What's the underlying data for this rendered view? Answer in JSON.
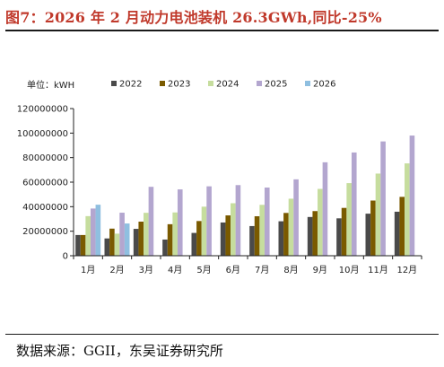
{
  "figure": {
    "title": "图7：2026 年 2 月动力电池装机 26.3GWh,同比-25%",
    "source": "数据来源：GGII，东吴证券研究所"
  },
  "chart_data": {
    "type": "bar",
    "unit_label": "单位：kWH",
    "categories": [
      "1月",
      "2月",
      "3月",
      "4月",
      "5月",
      "6月",
      "7月",
      "8月",
      "9月",
      "10月",
      "11月",
      "12月"
    ],
    "series": [
      {
        "name": "2022",
        "color": "#4a4a4a",
        "values": [
          16900000,
          14100000,
          21900000,
          13200000,
          18600000,
          27100000,
          24200000,
          28100000,
          31600000,
          30500000,
          34300000,
          35900000
        ]
      },
      {
        "name": "2023",
        "color": "#7a5a00",
        "values": [
          16900000,
          22100000,
          27800000,
          25700000,
          28300000,
          32900000,
          32200000,
          34900000,
          36400000,
          39000000,
          45000000,
          48000000
        ]
      },
      {
        "name": "2024",
        "color": "#c6dd9e",
        "values": [
          32300000,
          18000000,
          35000000,
          35300000,
          40000000,
          42800000,
          41500000,
          46500000,
          54500000,
          59200000,
          67000000,
          75300000
        ]
      },
      {
        "name": "2025",
        "color": "#b3a6cf",
        "values": [
          38500000,
          35100000,
          56200000,
          54100000,
          56600000,
          57600000,
          55600000,
          62300000,
          76200000,
          84200000,
          93200000,
          98000000
        ]
      },
      {
        "name": "2026",
        "color": "#8fbfe0",
        "values": [
          41600000,
          26300000,
          null,
          null,
          null,
          null,
          null,
          null,
          null,
          null,
          null,
          null
        ]
      }
    ],
    "y_ticks": [
      "0",
      "20000000",
      "40000000",
      "60000000",
      "80000000",
      "100000000",
      "120000000"
    ],
    "ylim": [
      0,
      120000000
    ],
    "grid": false,
    "legend_position": "top"
  }
}
